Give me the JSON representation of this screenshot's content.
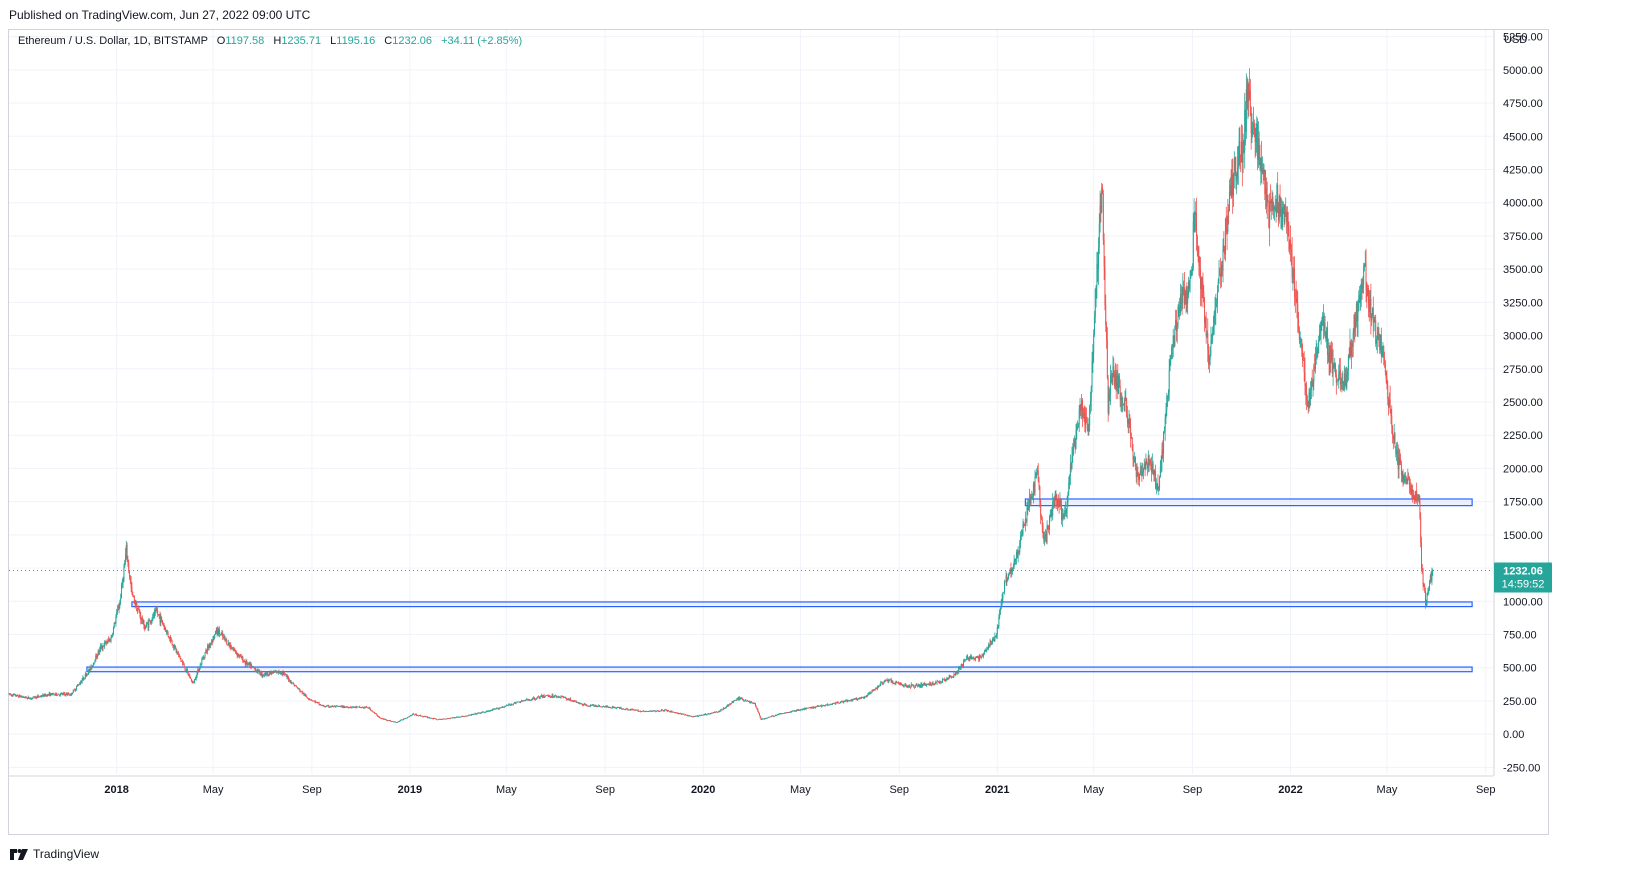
{
  "published": "Published on TradingView.com, Jun 27, 2022 09:00 UTC",
  "legend": {
    "symbol": "Ethereum / U.S. Dollar, 1D, BITSTAMP",
    "open_label": "O",
    "open": "1197.58",
    "high_label": "H",
    "high": "1235.71",
    "low_label": "L",
    "low": "1195.16",
    "close_label": "C",
    "close": "1232.06",
    "change": "+34.11 (+2.85%)"
  },
  "footer": {
    "brand": "TradingView",
    "icon": "tradingview-logo-icon"
  },
  "colors": {
    "up": "#26a69a",
    "down": "#ef5350",
    "zone": "#2962ff",
    "zone_fill": "#dbe6fb",
    "price_line": "#26a69a"
  },
  "chart_data": {
    "type": "candlestick",
    "currency": "USD",
    "y_ticks": [
      "5250.00",
      "5000.00",
      "4750.00",
      "4500.00",
      "4250.00",
      "4000.00",
      "3750.00",
      "3500.00",
      "3250.00",
      "3000.00",
      "2750.00",
      "2500.00",
      "2250.00",
      "2000.00",
      "1750.00",
      "1500.00",
      "1250.00",
      "1000.00",
      "750.00",
      "500.00",
      "250.00",
      "0.00",
      "-250.00"
    ],
    "ylim": [
      -300,
      5300
    ],
    "x_ticks": [
      {
        "label": "2018",
        "date": "2018-01-01",
        "bold": true
      },
      {
        "label": "May",
        "date": "2018-05-01"
      },
      {
        "label": "Sep",
        "date": "2018-09-01"
      },
      {
        "label": "2019",
        "date": "2019-01-01",
        "bold": true
      },
      {
        "label": "May",
        "date": "2019-05-01"
      },
      {
        "label": "Sep",
        "date": "2019-09-01"
      },
      {
        "label": "2020",
        "date": "2020-01-01",
        "bold": true
      },
      {
        "label": "May",
        "date": "2020-05-01"
      },
      {
        "label": "Sep",
        "date": "2020-09-01"
      },
      {
        "label": "2021",
        "date": "2021-01-01",
        "bold": true
      },
      {
        "label": "May",
        "date": "2021-05-01"
      },
      {
        "label": "Sep",
        "date": "2021-09-01"
      },
      {
        "label": "2022",
        "date": "2022-01-01",
        "bold": true
      },
      {
        "label": "May",
        "date": "2022-05-01"
      },
      {
        "label": "Sep",
        "date": "2022-09-01"
      }
    ],
    "xlim": [
      "2017-08-20",
      "2022-09-10"
    ],
    "last_price": {
      "value": 1232.06,
      "label": "1232.06",
      "countdown": "14:59:52"
    },
    "zones": [
      {
        "low": 1720,
        "high": 1770,
        "start": "2021-02-05",
        "end": "2022-08-15"
      },
      {
        "low": 960,
        "high": 995,
        "start": "2018-01-20",
        "end": "2022-08-15"
      },
      {
        "low": 470,
        "high": 505,
        "start": "2017-11-25",
        "end": "2022-08-15"
      }
    ],
    "path": [
      [
        "2017-08-20",
        300
      ],
      [
        "2017-09-15",
        270
      ],
      [
        "2017-10-10",
        300
      ],
      [
        "2017-11-05",
        300
      ],
      [
        "2017-11-28",
        480
      ],
      [
        "2017-12-12",
        650
      ],
      [
        "2017-12-25",
        720
      ],
      [
        "2018-01-05",
        1000
      ],
      [
        "2018-01-13",
        1380
      ],
      [
        "2018-01-20",
        1050
      ],
      [
        "2018-02-05",
        800
      ],
      [
        "2018-02-20",
        920
      ],
      [
        "2018-03-10",
        700
      ],
      [
        "2018-03-25",
        520
      ],
      [
        "2018-04-06",
        380
      ],
      [
        "2018-04-20",
        600
      ],
      [
        "2018-05-06",
        780
      ],
      [
        "2018-05-20",
        680
      ],
      [
        "2018-06-10",
        540
      ],
      [
        "2018-07-01",
        450
      ],
      [
        "2018-07-25",
        470
      ],
      [
        "2018-08-10",
        370
      ],
      [
        "2018-08-25",
        280
      ],
      [
        "2018-09-15",
        210
      ],
      [
        "2018-10-15",
        205
      ],
      [
        "2018-11-10",
        200
      ],
      [
        "2018-11-25",
        120
      ],
      [
        "2018-12-15",
        88
      ],
      [
        "2019-01-05",
        150
      ],
      [
        "2019-02-05",
        110
      ],
      [
        "2019-03-10",
        135
      ],
      [
        "2019-04-10",
        175
      ],
      [
        "2019-05-15",
        240
      ],
      [
        "2019-06-20",
        290
      ],
      [
        "2019-07-10",
        280
      ],
      [
        "2019-08-05",
        220
      ],
      [
        "2019-09-15",
        200
      ],
      [
        "2019-10-20",
        170
      ],
      [
        "2019-11-15",
        180
      ],
      [
        "2019-12-20",
        130
      ],
      [
        "2020-01-20",
        170
      ],
      [
        "2020-02-14",
        270
      ],
      [
        "2020-03-05",
        230
      ],
      [
        "2020-03-13",
        110
      ],
      [
        "2020-04-10",
        160
      ],
      [
        "2020-05-15",
        200
      ],
      [
        "2020-06-15",
        235
      ],
      [
        "2020-07-20",
        275
      ],
      [
        "2020-08-15",
        410
      ],
      [
        "2020-09-10",
        360
      ],
      [
        "2020-10-15",
        380
      ],
      [
        "2020-11-10",
        450
      ],
      [
        "2020-11-25",
        580
      ],
      [
        "2020-12-10",
        570
      ],
      [
        "2020-12-31",
        740
      ],
      [
        "2021-01-10",
        1150
      ],
      [
        "2021-01-25",
        1330
      ],
      [
        "2021-02-10",
        1750
      ],
      [
        "2021-02-20",
        1950
      ],
      [
        "2021-02-28",
        1420
      ],
      [
        "2021-03-15",
        1800
      ],
      [
        "2021-03-25",
        1600
      ],
      [
        "2021-04-05",
        2100
      ],
      [
        "2021-04-15",
        2450
      ],
      [
        "2021-04-25",
        2300
      ],
      [
        "2021-05-05",
        3500
      ],
      [
        "2021-05-11",
        4150
      ],
      [
        "2021-05-19",
        2500
      ],
      [
        "2021-05-25",
        2750
      ],
      [
        "2021-06-10",
        2450
      ],
      [
        "2021-06-25",
        1900
      ],
      [
        "2021-07-10",
        2100
      ],
      [
        "2021-07-20",
        1800
      ],
      [
        "2021-08-05",
        2800
      ],
      [
        "2021-08-15",
        3250
      ],
      [
        "2021-08-31",
        3400
      ],
      [
        "2021-09-03",
        3950
      ],
      [
        "2021-09-21",
        2800
      ],
      [
        "2021-10-05",
        3450
      ],
      [
        "2021-10-20",
        4150
      ],
      [
        "2021-11-01",
        4400
      ],
      [
        "2021-11-09",
        4800
      ],
      [
        "2021-11-25",
        4350
      ],
      [
        "2021-12-04",
        3900
      ],
      [
        "2021-12-15",
        4000
      ],
      [
        "2021-12-28",
        3850
      ],
      [
        "2022-01-10",
        3150
      ],
      [
        "2022-01-22",
        2450
      ],
      [
        "2022-02-10",
        3100
      ],
      [
        "2022-02-25",
        2700
      ],
      [
        "2022-03-10",
        2650
      ],
      [
        "2022-03-28",
        3300
      ],
      [
        "2022-04-03",
        3500
      ],
      [
        "2022-04-15",
        3050
      ],
      [
        "2022-04-26",
        2850
      ],
      [
        "2022-05-09",
        2250
      ],
      [
        "2022-05-15",
        2050
      ],
      [
        "2022-05-31",
        1850
      ],
      [
        "2022-06-10",
        1750
      ],
      [
        "2022-06-13",
        1250
      ],
      [
        "2022-06-18",
        1000
      ],
      [
        "2022-06-22",
        1120
      ],
      [
        "2022-06-27",
        1232
      ]
    ]
  }
}
